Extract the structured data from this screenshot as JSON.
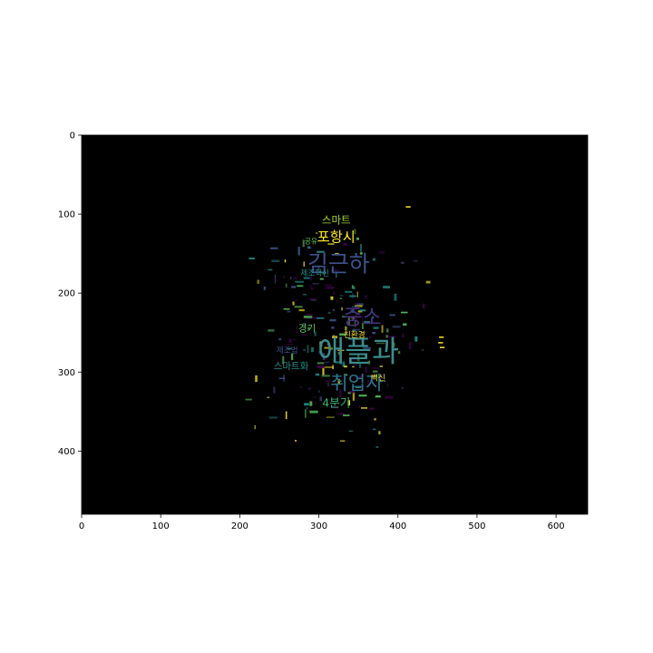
{
  "chart_data": {
    "type": "image",
    "title": "",
    "xlabel": "",
    "ylabel": "",
    "xlim": [
      0,
      640
    ],
    "ylim": [
      480,
      0
    ],
    "x_ticks": [
      0,
      100,
      200,
      300,
      400,
      500,
      600
    ],
    "y_ticks": [
      0,
      100,
      200,
      300,
      400
    ],
    "background_color": "#000000",
    "palette": [
      "#440154",
      "#3b528b",
      "#21918c",
      "#5ec962",
      "#fde725"
    ],
    "words": [
      {
        "text": "애플과",
        "x": 350,
        "y": 276,
        "size": 34,
        "color": "#3b8c8c"
      },
      {
        "text": "김근하",
        "x": 325,
        "y": 165,
        "size": 26,
        "color": "#3b528b"
      },
      {
        "text": "중소",
        "x": 355,
        "y": 232,
        "size": 24,
        "color": "#46327e"
      },
      {
        "text": "취업자",
        "x": 348,
        "y": 315,
        "size": 22,
        "color": "#2c728e"
      },
      {
        "text": "포항시",
        "x": 322,
        "y": 130,
        "size": 16,
        "color": "#fde725"
      },
      {
        "text": "스마트",
        "x": 322,
        "y": 108,
        "size": 12,
        "color": "#a0da39"
      },
      {
        "text": "4분기",
        "x": 322,
        "y": 340,
        "size": 13,
        "color": "#35b779"
      },
      {
        "text": "스마트화",
        "x": 265,
        "y": 293,
        "size": 11,
        "color": "#21918c"
      },
      {
        "text": "경기",
        "x": 285,
        "y": 245,
        "size": 11,
        "color": "#5ec962"
      },
      {
        "text": "제조혁신",
        "x": 295,
        "y": 175,
        "size": 9,
        "color": "#21918c"
      },
      {
        "text": "친환경",
        "x": 345,
        "y": 253,
        "size": 9,
        "color": "#fde725"
      },
      {
        "text": "제조법",
        "x": 260,
        "y": 273,
        "size": 9,
        "color": "#3b528b"
      },
      {
        "text": "백신",
        "x": 375,
        "y": 308,
        "size": 9,
        "color": "#fde725"
      },
      {
        "text": "공유",
        "x": 290,
        "y": 135,
        "size": 8,
        "color": "#5ec962"
      }
    ]
  }
}
